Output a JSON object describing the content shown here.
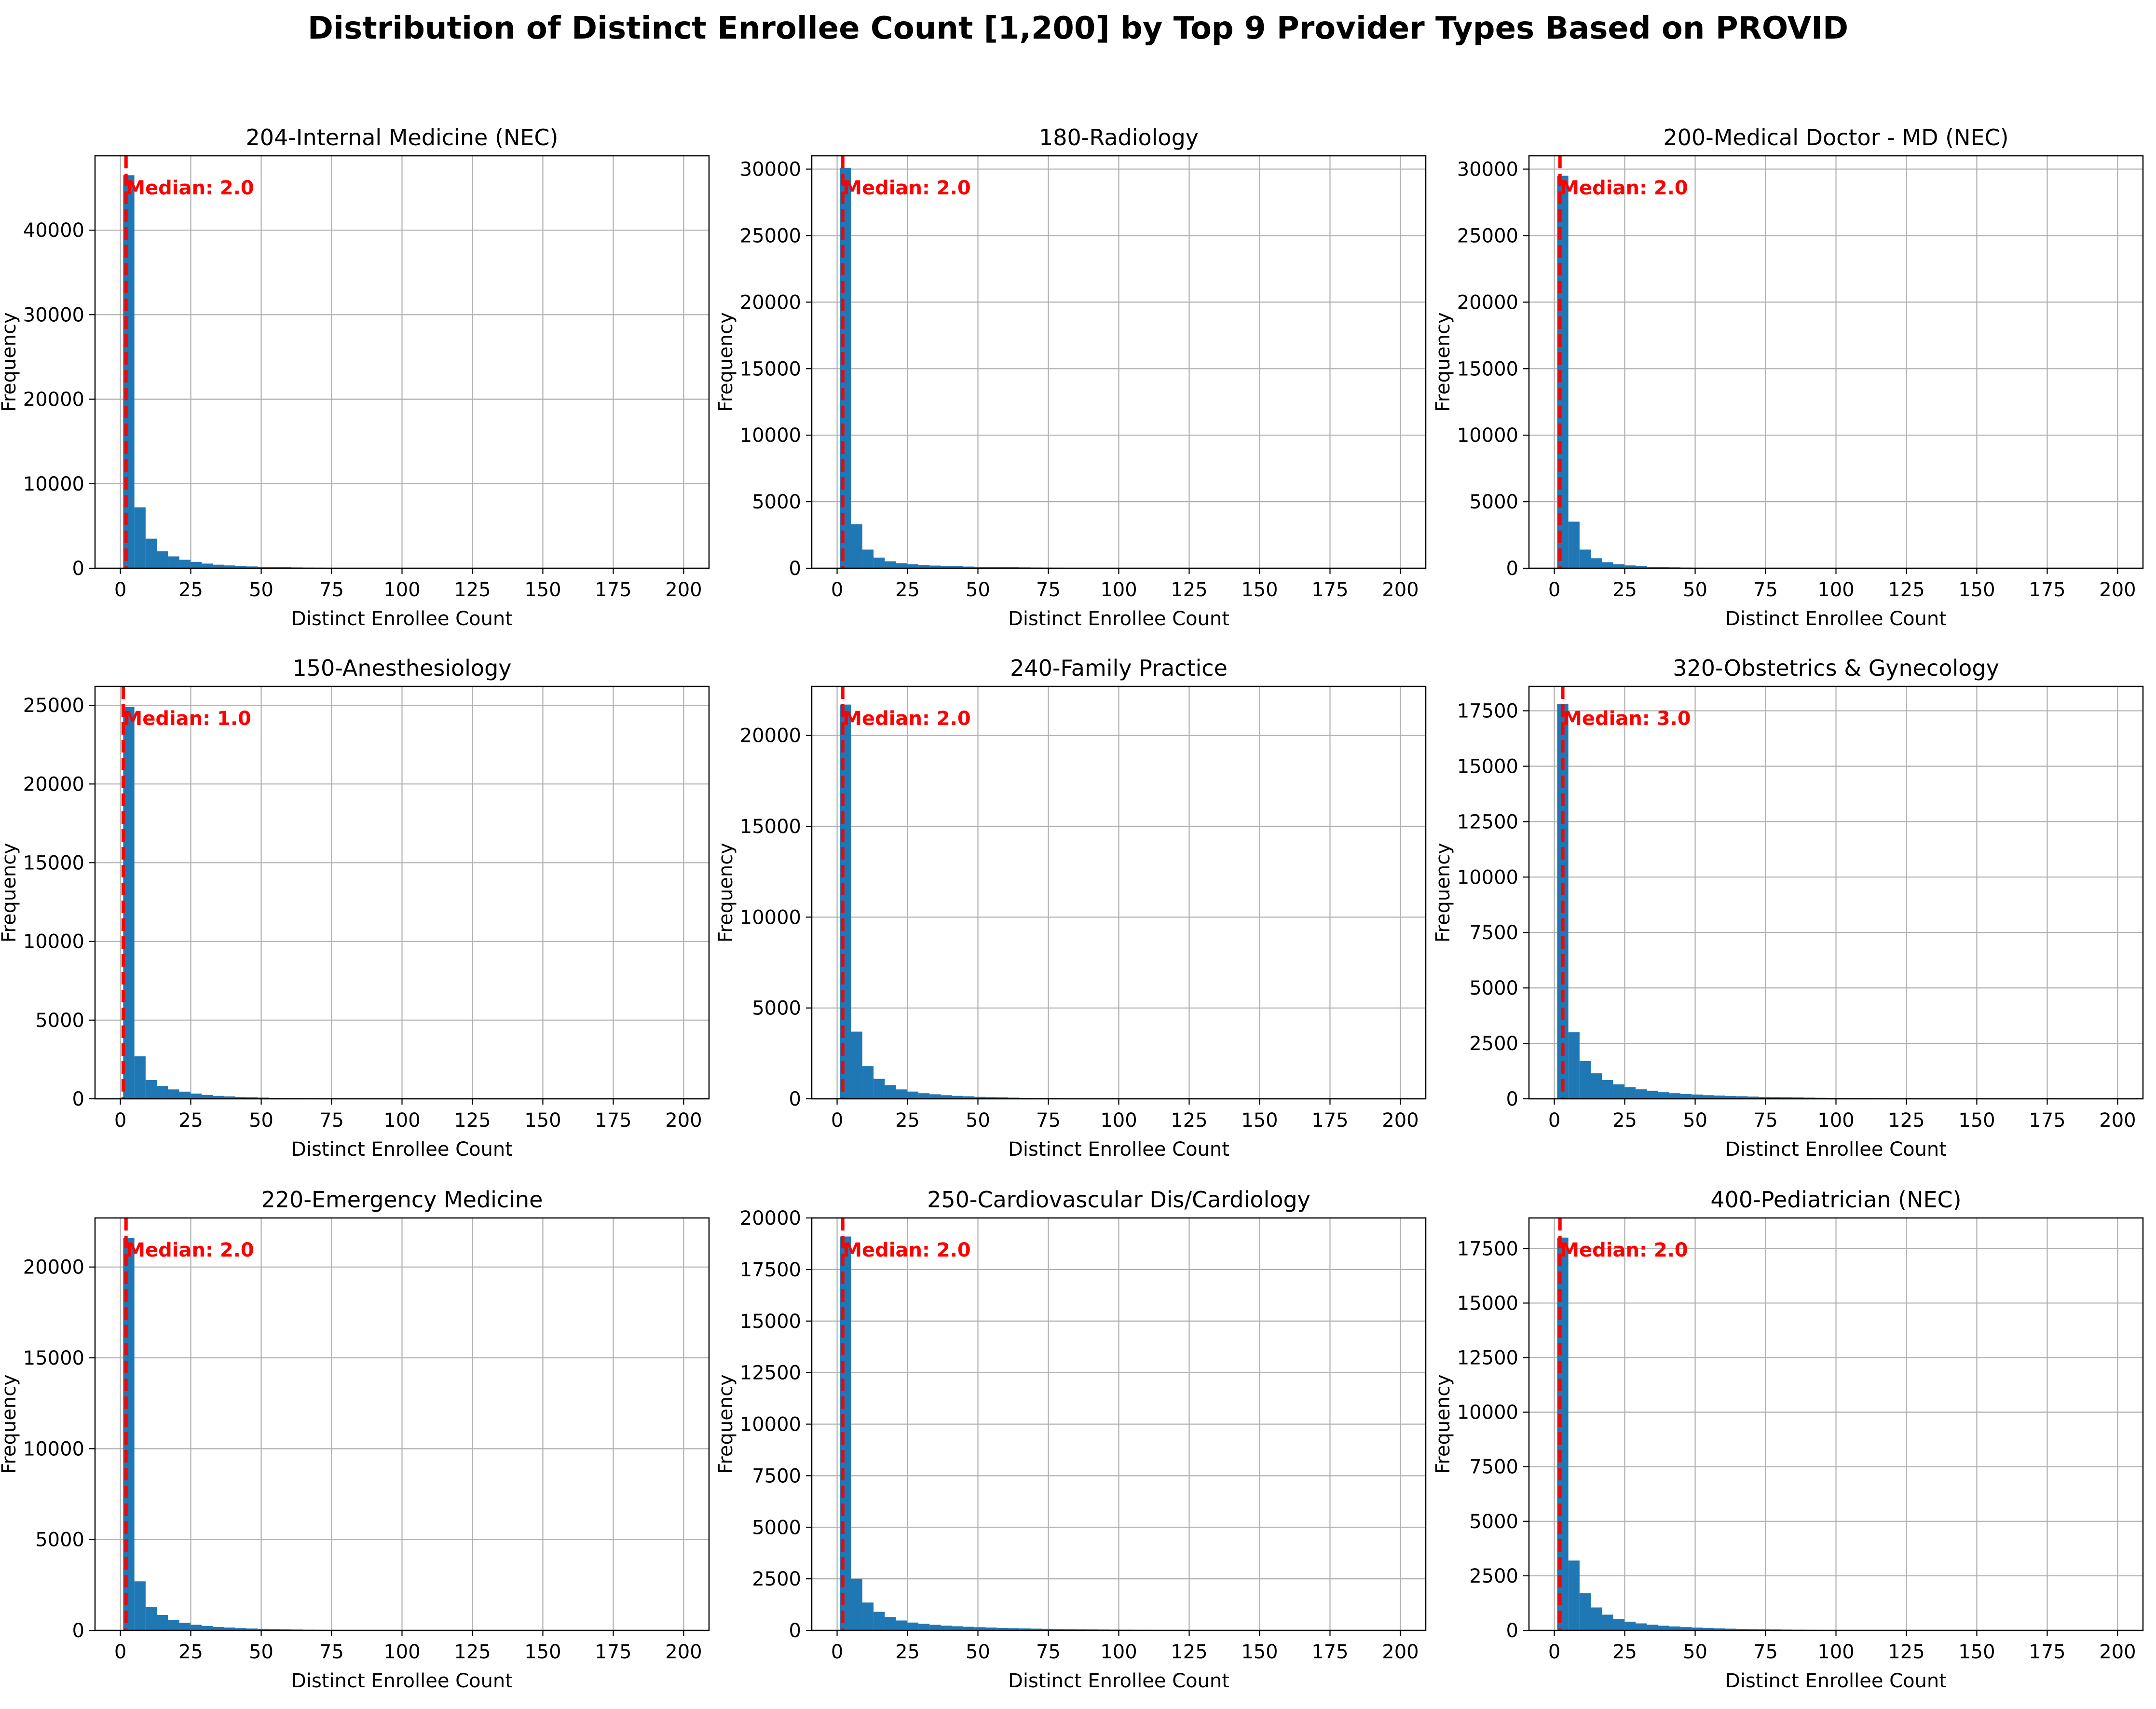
{
  "title": "Distribution of Distinct Enrollee Count [1,200] by Top 9 Provider Types Based on PROVID",
  "colors": {
    "bar": "#1f77b4",
    "median": "#ff0000",
    "grid": "#b0b0b0"
  },
  "chart_data": [
    {
      "type": "bar",
      "title": "204-Internal Medicine (NEC)",
      "xlabel": "Distinct Enrollee Count",
      "ylabel": "Frequency",
      "xlim": [
        -9,
        209
      ],
      "ylim": [
        0,
        48800
      ],
      "xticks": [
        0,
        25,
        50,
        75,
        100,
        125,
        150,
        175,
        200
      ],
      "yticks": [
        0,
        10000,
        20000,
        30000,
        40000
      ],
      "bin_edges_start": 1,
      "bin_width": 3.98,
      "values": [
        46500,
        7200,
        3500,
        2000,
        1400,
        1000,
        750,
        550,
        420,
        330,
        260,
        210,
        170,
        140,
        115,
        95,
        80,
        68,
        58,
        50,
        43,
        37,
        32,
        28,
        24,
        21,
        18,
        16,
        14,
        12,
        11,
        10,
        9,
        8,
        7,
        6,
        5,
        5,
        4,
        4,
        3,
        3,
        3,
        2,
        2,
        2,
        2,
        2,
        1,
        1
      ],
      "median": 2.0,
      "median_label": "Median: 2.0",
      "grid": true
    },
    {
      "type": "bar",
      "title": "180-Radiology",
      "xlabel": "Distinct Enrollee Count",
      "ylabel": "Frequency",
      "xlim": [
        -9,
        209
      ],
      "ylim": [
        0,
        31000
      ],
      "xticks": [
        0,
        25,
        50,
        75,
        100,
        125,
        150,
        175,
        200
      ],
      "yticks": [
        0,
        5000,
        10000,
        15000,
        20000,
        25000,
        30000
      ],
      "bin_edges_start": 1,
      "bin_width": 3.98,
      "values": [
        30100,
        3300,
        1400,
        800,
        520,
        380,
        300,
        240,
        200,
        170,
        145,
        125,
        110,
        95,
        82,
        72,
        63,
        55,
        48,
        42,
        37,
        33,
        29,
        26,
        23,
        20,
        18,
        16,
        14,
        12,
        11,
        10,
        9,
        8,
        7,
        6,
        5,
        5,
        4,
        4,
        3,
        3,
        3,
        2,
        2,
        2,
        2,
        1,
        1,
        1
      ],
      "median": 2.0,
      "median_label": "Median: 2.0",
      "grid": true
    },
    {
      "type": "bar",
      "title": "200-Medical Doctor - MD (NEC)",
      "xlabel": "Distinct Enrollee Count",
      "ylabel": "Frequency",
      "xlim": [
        -9,
        209
      ],
      "ylim": [
        0,
        31000
      ],
      "xticks": [
        0,
        25,
        50,
        75,
        100,
        125,
        150,
        175,
        200
      ],
      "yticks": [
        0,
        5000,
        10000,
        15000,
        20000,
        25000,
        30000
      ],
      "bin_edges_start": 1,
      "bin_width": 3.98,
      "values": [
        29500,
        3500,
        1400,
        750,
        450,
        300,
        210,
        150,
        110,
        85,
        65,
        50,
        40,
        32,
        26,
        21,
        17,
        14,
        12,
        10,
        8,
        7,
        6,
        5,
        4,
        4,
        3,
        3,
        2,
        2,
        2,
        2,
        1,
        1,
        1,
        1,
        1,
        1,
        1,
        1,
        0,
        0,
        0,
        0,
        0,
        0,
        0,
        0,
        0,
        0
      ],
      "median": 2.0,
      "median_label": "Median: 2.0",
      "grid": true
    },
    {
      "type": "bar",
      "title": "150-Anesthesiology",
      "xlabel": "Distinct Enrollee Count",
      "ylabel": "Frequency",
      "xlim": [
        -9,
        209
      ],
      "ylim": [
        0,
        26200
      ],
      "xticks": [
        0,
        25,
        50,
        75,
        100,
        125,
        150,
        175,
        200
      ],
      "yticks": [
        0,
        5000,
        10000,
        15000,
        20000,
        25000
      ],
      "bin_edges_start": 1,
      "bin_width": 3.98,
      "values": [
        24900,
        2700,
        1200,
        800,
        600,
        450,
        330,
        250,
        190,
        150,
        120,
        95,
        78,
        64,
        53,
        44,
        37,
        31,
        26,
        22,
        19,
        16,
        14,
        12,
        10,
        9,
        8,
        7,
        6,
        5,
        5,
        4,
        4,
        3,
        3,
        3,
        2,
        2,
        2,
        2,
        1,
        1,
        1,
        1,
        1,
        1,
        1,
        1,
        1,
        1
      ],
      "median": 1.0,
      "median_label": "Median: 1.0",
      "grid": true
    },
    {
      "type": "bar",
      "title": "240-Family Practice",
      "xlabel": "Distinct Enrollee Count",
      "ylabel": "Frequency",
      "xlim": [
        -9,
        209
      ],
      "ylim": [
        0,
        22700
      ],
      "xticks": [
        0,
        25,
        50,
        75,
        100,
        125,
        150,
        175,
        200
      ],
      "yticks": [
        0,
        5000,
        10000,
        15000,
        20000
      ],
      "bin_edges_start": 1,
      "bin_width": 3.98,
      "values": [
        21700,
        3700,
        1800,
        1100,
        750,
        520,
        400,
        310,
        250,
        200,
        165,
        135,
        112,
        93,
        78,
        66,
        56,
        48,
        41,
        35,
        30,
        26,
        22,
        19,
        17,
        15,
        13,
        11,
        10,
        9,
        8,
        7,
        6,
        5,
        5,
        4,
        4,
        3,
        3,
        3,
        2,
        2,
        2,
        2,
        1,
        1,
        1,
        1,
        1,
        1
      ],
      "median": 2.0,
      "median_label": "Median: 2.0",
      "grid": true
    },
    {
      "type": "bar",
      "title": "320-Obstetrics & Gynecology",
      "xlabel": "Distinct Enrollee Count",
      "ylabel": "Frequency",
      "xlim": [
        -9,
        209
      ],
      "ylim": [
        0,
        18600
      ],
      "xticks": [
        0,
        25,
        50,
        75,
        100,
        125,
        150,
        175,
        200
      ],
      "yticks": [
        0,
        2500,
        5000,
        7500,
        10000,
        12500,
        15000,
        17500
      ],
      "bin_edges_start": 1,
      "bin_width": 3.98,
      "values": [
        17800,
        3000,
        1700,
        1150,
        850,
        650,
        520,
        430,
        360,
        300,
        255,
        220,
        190,
        165,
        145,
        128,
        113,
        100,
        89,
        79,
        70,
        62,
        55,
        49,
        44,
        39,
        35,
        31,
        28,
        25,
        22,
        20,
        18,
        16,
        14,
        13,
        11,
        10,
        9,
        8,
        7,
        7,
        6,
        5,
        5,
        4,
        4,
        3,
        3,
        3
      ],
      "median": 3.0,
      "median_label": "Median: 3.0",
      "grid": true
    },
    {
      "type": "bar",
      "title": "220-Emergency Medicine",
      "xlabel": "Distinct Enrollee Count",
      "ylabel": "Frequency",
      "xlim": [
        -9,
        209
      ],
      "ylim": [
        0,
        22700
      ],
      "xticks": [
        0,
        25,
        50,
        75,
        100,
        125,
        150,
        175,
        200
      ],
      "yticks": [
        0,
        5000,
        10000,
        15000,
        20000
      ],
      "bin_edges_start": 1,
      "bin_width": 3.98,
      "values": [
        21600,
        2700,
        1300,
        850,
        580,
        420,
        310,
        240,
        190,
        155,
        125,
        102,
        84,
        70,
        58,
        48,
        40,
        34,
        29,
        25,
        21,
        18,
        15,
        13,
        11,
        10,
        9,
        8,
        7,
        6,
        5,
        5,
        4,
        4,
        3,
        3,
        3,
        2,
        2,
        2,
        2,
        1,
        1,
        1,
        1,
        1,
        1,
        1,
        1,
        1
      ],
      "median": 2.0,
      "median_label": "Median: 2.0",
      "grid": true
    },
    {
      "type": "bar",
      "title": "250-Cardiovascular Dis/Cardiology",
      "xlabel": "Distinct Enrollee Count",
      "ylabel": "Frequency",
      "xlim": [
        -9,
        209
      ],
      "ylim": [
        0,
        20000
      ],
      "xticks": [
        0,
        25,
        50,
        75,
        100,
        125,
        150,
        175,
        200
      ],
      "yticks": [
        0,
        2500,
        5000,
        7500,
        10000,
        12500,
        15000,
        17500,
        20000
      ],
      "bin_edges_start": 1,
      "bin_width": 3.98,
      "values": [
        19100,
        2500,
        1350,
        900,
        650,
        480,
        380,
        320,
        270,
        230,
        200,
        175,
        155,
        137,
        121,
        107,
        95,
        84,
        75,
        67,
        60,
        53,
        47,
        42,
        38,
        34,
        30,
        27,
        24,
        22,
        20,
        18,
        16,
        14,
        13,
        12,
        11,
        10,
        9,
        8,
        7,
        6,
        6,
        5,
        5,
        4,
        4,
        3,
        3,
        3
      ],
      "median": 2.0,
      "median_label": "Median: 2.0",
      "grid": true
    },
    {
      "type": "bar",
      "title": "400-Pediatrician (NEC)",
      "xlabel": "Distinct Enrollee Count",
      "ylabel": "Frequency",
      "xlim": [
        -9,
        209
      ],
      "ylim": [
        0,
        18900
      ],
      "xticks": [
        0,
        25,
        50,
        75,
        100,
        125,
        150,
        175,
        200
      ],
      "yticks": [
        0,
        2500,
        5000,
        7500,
        10000,
        12500,
        15000,
        17500
      ],
      "bin_edges_start": 1,
      "bin_width": 3.98,
      "values": [
        18000,
        3200,
        1700,
        1050,
        720,
        520,
        400,
        320,
        260,
        215,
        180,
        150,
        127,
        108,
        92,
        79,
        68,
        58,
        50,
        43,
        37,
        32,
        28,
        24,
        21,
        18,
        16,
        14,
        12,
        11,
        9,
        8,
        7,
        6,
        6,
        5,
        4,
        4,
        3,
        3,
        3,
        2,
        2,
        2,
        2,
        1,
        1,
        1,
        1,
        1
      ],
      "median": 2.0,
      "median_label": "Median: 2.0",
      "grid": true
    }
  ]
}
